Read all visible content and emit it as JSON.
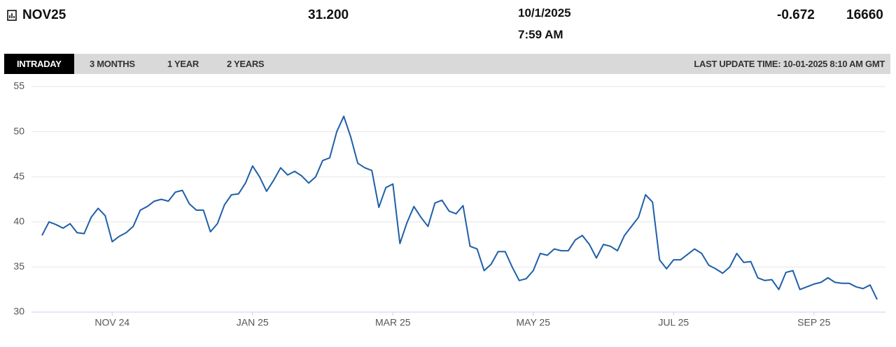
{
  "header": {
    "symbol": "NOV25",
    "price": "31.200",
    "date": "10/1/2025",
    "time": "7:59 AM",
    "change": "-0.672",
    "volume": "16660"
  },
  "tabs": [
    "INTRADAY",
    "3 MONTHS",
    "1 YEAR",
    "2 YEARS"
  ],
  "last_update": "LAST UPDATE TIME: 10-01-2025 8:10 AM GMT",
  "chart_data": {
    "type": "line",
    "color": "#1f5fa8",
    "grid": true,
    "ylim": [
      30,
      55
    ],
    "yticks": [
      30,
      35,
      40,
      45,
      50,
      55
    ],
    "categories": [
      null,
      null,
      null,
      null,
      null,
      null,
      null,
      null,
      null,
      null,
      "NOV 24",
      null,
      null,
      null,
      null,
      null,
      null,
      null,
      null,
      null,
      null,
      null,
      null,
      null,
      null,
      null,
      null,
      null,
      null,
      null,
      "JAN 25",
      null,
      null,
      null,
      null,
      null,
      null,
      null,
      null,
      null,
      null,
      null,
      null,
      null,
      null,
      null,
      null,
      null,
      null,
      null,
      "MAR 25",
      null,
      null,
      null,
      null,
      null,
      null,
      null,
      null,
      null,
      null,
      null,
      null,
      null,
      null,
      null,
      null,
      null,
      null,
      null,
      "MAY 25",
      null,
      null,
      null,
      null,
      null,
      null,
      null,
      null,
      null,
      null,
      null,
      null,
      null,
      null,
      null,
      null,
      null,
      null,
      null,
      "JUL 25",
      null,
      null,
      null,
      null,
      null,
      null,
      null,
      null,
      null,
      null,
      null,
      null,
      null,
      null,
      null,
      null,
      null,
      null,
      null,
      "SEP 25",
      null,
      null,
      null,
      null,
      null,
      null,
      null,
      null,
      null
    ],
    "values": [
      38.5,
      40,
      39.7,
      39.3,
      39.8,
      38.8,
      38.7,
      40.5,
      41.5,
      40.7,
      37.8,
      38.4,
      38.8,
      39.5,
      41.3,
      41.7,
      42.3,
      42.5,
      42.3,
      43.3,
      43.5,
      42.0,
      41.3,
      41.3,
      38.9,
      39.8,
      41.9,
      43.0,
      43.1,
      44.3,
      46.2,
      45.0,
      43.4,
      44.6,
      46.0,
      45.2,
      45.6,
      45.1,
      44.3,
      45.0,
      46.8,
      47.1,
      50.0,
      51.7,
      49.4,
      46.5,
      46.0,
      45.7,
      41.6,
      43.8,
      44.2,
      37.6,
      39.9,
      41.7,
      40.5,
      39.5,
      42.1,
      42.4,
      41.2,
      40.9,
      41.8,
      37.3,
      37.0,
      34.6,
      35.3,
      36.7,
      36.7,
      35.0,
      33.5,
      33.7,
      34.6,
      36.5,
      36.3,
      37.0,
      36.8,
      36.8,
      38.0,
      38.5,
      37.5,
      36.0,
      37.5,
      37.3,
      36.8,
      38.5,
      39.5,
      40.5,
      43.0,
      42.2,
      35.8,
      34.8,
      35.8,
      35.8,
      36.4,
      37.0,
      36.5,
      35.2,
      34.8,
      34.3,
      35.0,
      36.5,
      35.5,
      35.6,
      33.8,
      33.5,
      33.6,
      32.5,
      34.4,
      34.6,
      32.5,
      32.8,
      33.1,
      33.3,
      33.8,
      33.3,
      33.2,
      33.2,
      32.8,
      32.6,
      33.0,
      31.4
    ]
  }
}
